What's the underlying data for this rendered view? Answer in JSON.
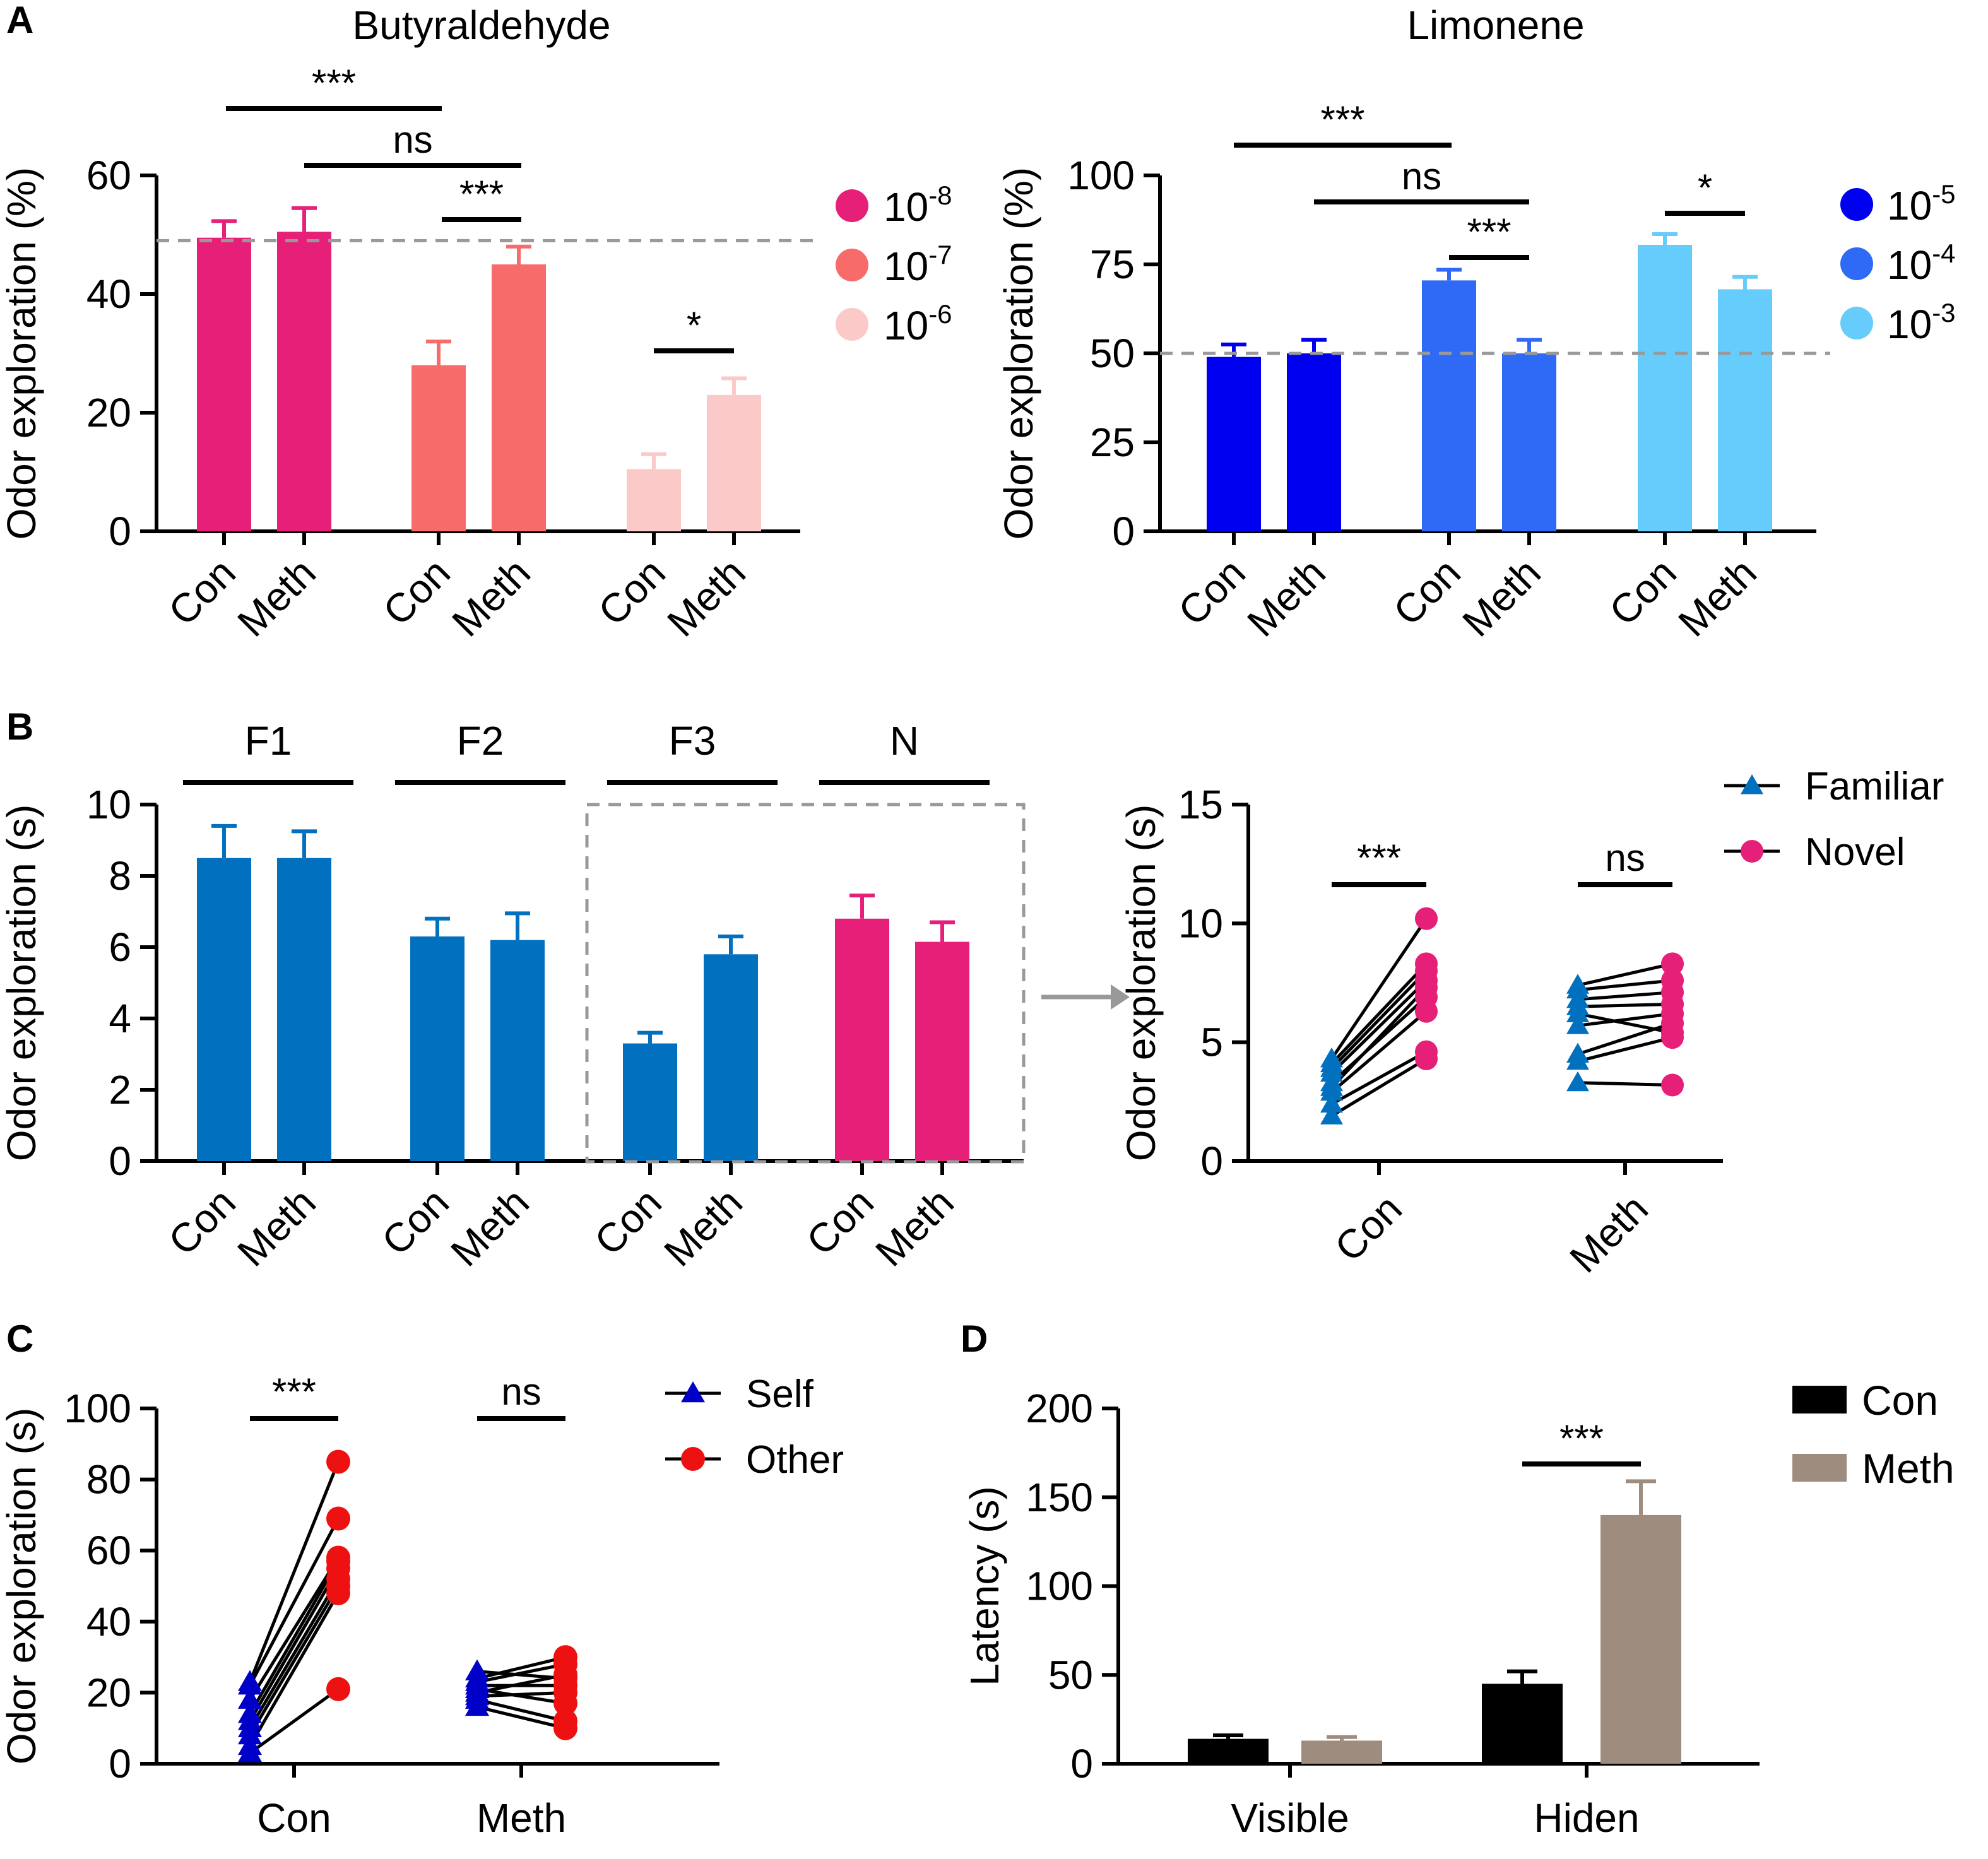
{
  "chart_data": [
    {
      "panel": "A",
      "type": "bar",
      "title": "Butyraldehyde",
      "ylabel": "Odor exploration (%)",
      "ylim": [
        0,
        60
      ],
      "yticks": [
        0,
        20,
        40,
        60
      ],
      "reference_line": 49,
      "categories": [
        "Con",
        "Meth",
        "Con",
        "Meth",
        "Con",
        "Meth"
      ],
      "values": [
        49.5,
        50.5,
        28,
        45,
        10.5,
        23
      ],
      "errors": [
        2.8,
        4,
        4,
        3,
        2.5,
        2.8
      ],
      "colors": [
        "#e61f78",
        "#e61f78",
        "#f76b6b",
        "#f76b6b",
        "#fcc9c9",
        "#fcc9c9"
      ],
      "legend": [
        {
          "base": "10",
          "exp": "-8",
          "color": "#e61f78"
        },
        {
          "base": "10",
          "exp": "-7",
          "color": "#f76b6b"
        },
        {
          "base": "10",
          "exp": "-6",
          "color": "#fcc9c9"
        }
      ],
      "significance": [
        {
          "from": 0,
          "to": 2,
          "label": "***"
        },
        {
          "from": 1,
          "to": 3,
          "label": "ns"
        },
        {
          "from": 2,
          "to": 3,
          "label": "***"
        },
        {
          "from": 4,
          "to": 5,
          "label": "*"
        }
      ]
    },
    {
      "panel": "A",
      "type": "bar",
      "title": "Limonene",
      "ylabel": "Odor exploration (%)",
      "ylim": [
        0,
        100
      ],
      "yticks": [
        0,
        25,
        50,
        75,
        100
      ],
      "reference_line": 50,
      "categories": [
        "Con",
        "Meth",
        "Con",
        "Meth",
        "Con",
        "Meth"
      ],
      "values": [
        49,
        50,
        70.5,
        50,
        80.5,
        68
      ],
      "errors": [
        3.5,
        3.8,
        3,
        3.8,
        3,
        3.5
      ],
      "colors": [
        "#0000f0",
        "#0000f0",
        "#2f6af7",
        "#2f6af7",
        "#66ccfc",
        "#66ccfc"
      ],
      "legend": [
        {
          "base": "10",
          "exp": "-5",
          "color": "#0000f0"
        },
        {
          "base": "10",
          "exp": "-4",
          "color": "#2f6af7"
        },
        {
          "base": "10",
          "exp": "-3",
          "color": "#66ccfc"
        }
      ],
      "significance": [
        {
          "from": 0,
          "to": 2,
          "label": "***"
        },
        {
          "from": 1,
          "to": 3,
          "label": "ns"
        },
        {
          "from": 2,
          "to": 3,
          "label": "***"
        },
        {
          "from": 4,
          "to": 5,
          "label": "*"
        }
      ]
    },
    {
      "panel": "B",
      "type": "bar",
      "ylabel": "Odor exploration (s)",
      "ylim": [
        0,
        10
      ],
      "yticks": [
        0,
        2,
        4,
        6,
        8,
        10
      ],
      "categories": [
        "Con",
        "Meth",
        "Con",
        "Meth",
        "Con",
        "Meth",
        "Con",
        "Meth"
      ],
      "values": [
        8.5,
        8.5,
        6.3,
        6.2,
        3.3,
        5.8,
        6.8,
        6.15
      ],
      "errors": [
        0.9,
        0.75,
        0.5,
        0.75,
        0.3,
        0.5,
        0.65,
        0.55
      ],
      "colors": [
        "#0070bf",
        "#0070bf",
        "#0070bf",
        "#0070bf",
        "#0070bf",
        "#0070bf",
        "#e61f78",
        "#e61f78"
      ],
      "group_labels": [
        "F1",
        "F2",
        "F3",
        "N"
      ]
    },
    {
      "panel": "B",
      "type": "scatter",
      "ylabel": "Odor exploration (s)",
      "ylim": [
        0,
        15
      ],
      "yticks": [
        0,
        5,
        10,
        15
      ],
      "categories": [
        "Con",
        "Meth"
      ],
      "series": [
        {
          "name": "Familiar",
          "color": "#0070bf",
          "marker": "triangle"
        },
        {
          "name": "Novel",
          "color": "#e61f78",
          "marker": "circle"
        }
      ],
      "pairs": {
        "Con": [
          [
            1.9,
            4.3
          ],
          [
            2.4,
            4.6
          ],
          [
            2.9,
            6.3
          ],
          [
            3.3,
            6.9
          ],
          [
            3.7,
            7.6
          ],
          [
            4.1,
            8.3
          ],
          [
            4.3,
            10.2
          ],
          [
            3.1,
            7.3
          ],
          [
            3.9,
            8.0
          ]
        ],
        "Meth": [
          [
            3.3,
            3.2
          ],
          [
            4.2,
            5.2
          ],
          [
            4.5,
            5.8
          ],
          [
            5.7,
            6.2
          ],
          [
            6.2,
            5.4
          ],
          [
            6.8,
            7.1
          ],
          [
            7.2,
            7.6
          ],
          [
            7.4,
            8.3
          ],
          [
            6.5,
            6.6
          ]
        ]
      },
      "significance": [
        {
          "group": "Con",
          "label": "***"
        },
        {
          "group": "Meth",
          "label": "ns"
        }
      ]
    },
    {
      "panel": "C",
      "type": "scatter",
      "ylabel": "Odor exploration (s)",
      "ylim": [
        0,
        100
      ],
      "yticks": [
        0,
        20,
        40,
        60,
        80,
        100
      ],
      "categories": [
        "Con",
        "Meth"
      ],
      "series": [
        {
          "name": "Self",
          "color": "#0000c8",
          "marker": "triangle"
        },
        {
          "name": "Other",
          "color": "#ee1111",
          "marker": "circle"
        }
      ],
      "pairs": {
        "Con": [
          [
            3,
            21
          ],
          [
            5,
            48
          ],
          [
            8,
            50
          ],
          [
            10,
            52
          ],
          [
            12,
            55
          ],
          [
            14,
            57
          ],
          [
            18,
            58
          ],
          [
            22,
            69
          ],
          [
            23,
            85
          ]
        ],
        "Meth": [
          [
            16,
            10
          ],
          [
            18,
            12
          ],
          [
            19,
            20
          ],
          [
            20,
            25
          ],
          [
            21,
            17
          ],
          [
            22,
            22
          ],
          [
            23,
            28
          ],
          [
            24,
            30
          ],
          [
            26,
            24
          ]
        ]
      },
      "significance": [
        {
          "group": "Con",
          "label": "***"
        },
        {
          "group": "Meth",
          "label": "ns"
        }
      ]
    },
    {
      "panel": "D",
      "type": "bar",
      "ylabel": "Latency (s)",
      "ylim": [
        0,
        200
      ],
      "yticks": [
        0,
        50,
        100,
        150,
        200
      ],
      "categories": [
        "Visible",
        "Hiden"
      ],
      "series": [
        {
          "name": "Con",
          "color": "#000000",
          "values": [
            14,
            45
          ],
          "errors": [
            2,
            7
          ]
        },
        {
          "name": "Meth",
          "color": "#9e8d7e",
          "values": [
            13,
            140
          ],
          "errors": [
            2,
            19
          ]
        }
      ],
      "significance": [
        {
          "group": "Hiden",
          "label": "***"
        }
      ]
    }
  ],
  "panel_letters": [
    "A",
    "B",
    "C",
    "D"
  ]
}
